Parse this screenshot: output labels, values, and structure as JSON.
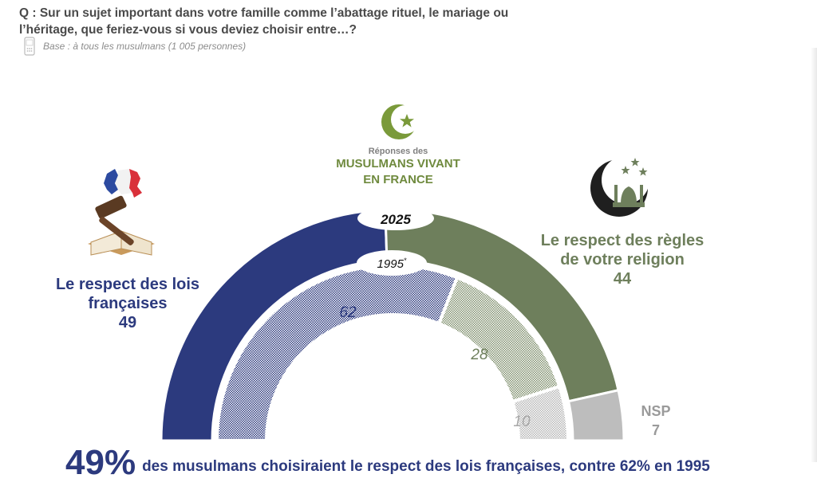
{
  "question": "Q : Sur un sujet important dans votre famille comme l’abattage rituel, le mariage ou l’héritage, que feriez-vous si vous deviez choisir entre…?",
  "base": "Base : à tous les musulmans (1 005 personnes)",
  "center": {
    "small": "Réponses des",
    "line1": "MUSULMANS VIVANT",
    "line2": "EN FRANCE"
  },
  "left_option": {
    "line1": "Le respect des lois",
    "line2": "françaises",
    "value_2025": "49"
  },
  "right_option": {
    "line1": "Le respect des règles",
    "line2": "de votre religion",
    "value_2025": "44"
  },
  "nsp": {
    "label": "NSP",
    "value_2025": "7"
  },
  "footer": {
    "big": "49%",
    "text": "des musulmans choisiraient le respect des lois françaises, contre 62% en 1995"
  },
  "colors": {
    "navy": "#2c3a7e",
    "green": "#6e7f5c",
    "grey": "#bdbdbd",
    "olive_text": "#6f8a3e"
  },
  "chart_data": {
    "type": "pie",
    "subtype": "nested-semicircle",
    "title": "Réponses des MUSULMANS VIVANT EN FRANCE",
    "categories": [
      "Le respect des lois françaises",
      "Le respect des règles de votre religion",
      "NSP"
    ],
    "series": [
      {
        "name": "2025",
        "values": [
          49,
          44,
          7
        ]
      },
      {
        "name": "1995*",
        "values": [
          62,
          28,
          10
        ]
      }
    ]
  }
}
